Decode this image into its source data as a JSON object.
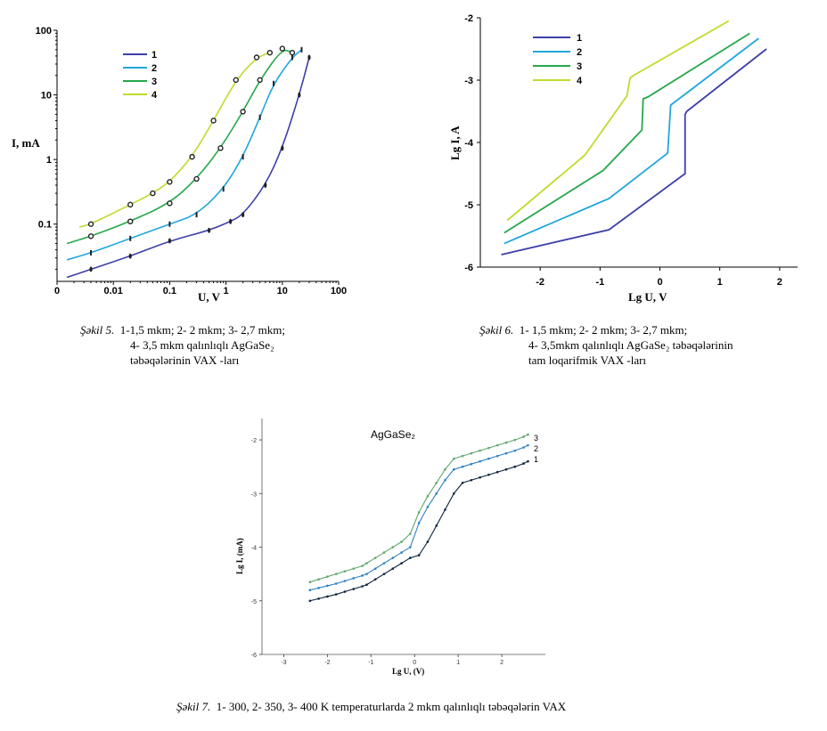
{
  "captions": {
    "fig5": {
      "label": "Şəkil 5.",
      "line1": "1-1,5 mkm; 2- 2 mkm; 3- 2,7 mkm;",
      "line2": "4- 3,5 mkm  qalınlıqlı AgGaSe₂",
      "line3": "təbəqələrinin  VAX -ları"
    },
    "fig6": {
      "label": "Şəkil 6.",
      "line1": "1- 1,5 mkm; 2- 2 mkm; 3- 2,7 mkm;",
      "line2": "4- 3,5mkm qalınlıqlı AgGaSe₂ təbəqələrinin",
      "line3": "tam loqarifmik  VAX -ları"
    },
    "fig7": {
      "label": "Şəkil 7.",
      "text": "1- 300, 2- 350, 3- 400 K temperaturlarda 2 mkm qalınlıqlı təbəqələrin VAX"
    }
  },
  "colors": {
    "s1": "#3d3fa8",
    "s2": "#21a6dc",
    "s3": "#26a84a",
    "s4": "#bedc2e",
    "f7_1": "#0a1f3a",
    "f7_2": "#2f7fc4",
    "f7_3": "#5fa86a"
  },
  "chart_data": [
    {
      "type": "line",
      "ylabel": "I, mA",
      "xlabel": "U, V",
      "xscale": "log",
      "yscale": "log",
      "xlim": [
        0.001,
        100
      ],
      "ylim": [
        0.013,
        100
      ],
      "xticks": [
        "0",
        "0.01",
        "0.1",
        "1",
        "10",
        "100"
      ],
      "yticks": [
        "0.1",
        "1",
        "10",
        "100"
      ],
      "legend": [
        "1",
        "2",
        "3",
        "4"
      ],
      "legend_position": "top-left",
      "series": [
        {
          "name": "1",
          "x": [
            0.0015,
            0.004,
            0.02,
            0.1,
            0.5,
            1.2,
            2,
            5,
            10,
            20,
            30
          ],
          "y": [
            0.015,
            0.02,
            0.032,
            0.055,
            0.08,
            0.11,
            0.14,
            0.4,
            1.5,
            10,
            38
          ]
        },
        {
          "name": "2",
          "x": [
            0.0015,
            0.004,
            0.02,
            0.1,
            0.3,
            0.9,
            2,
            4,
            7,
            15,
            22
          ],
          "y": [
            0.028,
            0.036,
            0.06,
            0.1,
            0.14,
            0.35,
            1.1,
            4.5,
            15,
            38,
            50
          ]
        },
        {
          "name": "3",
          "x": [
            0.0015,
            0.004,
            0.02,
            0.1,
            0.3,
            0.8,
            2,
            4,
            10,
            15
          ],
          "y": [
            0.05,
            0.065,
            0.11,
            0.21,
            0.5,
            1.5,
            5.5,
            17,
            52,
            45
          ]
        },
        {
          "name": "4",
          "x": [
            0.0025,
            0.004,
            0.02,
            0.05,
            0.1,
            0.25,
            0.6,
            1.5,
            3.5,
            6
          ],
          "y": [
            0.09,
            0.1,
            0.2,
            0.3,
            0.45,
            1.1,
            4,
            17,
            38,
            45
          ]
        }
      ]
    },
    {
      "type": "line",
      "ylabel": "Lg I, A",
      "xlabel": "Lg U, V",
      "xlim": [
        -3,
        2.3
      ],
      "ylim": [
        -6,
        -2
      ],
      "xticks": [
        "-2",
        "-1",
        "0",
        "1",
        "2"
      ],
      "yticks": [
        "-2",
        "-3",
        "-4",
        "-5",
        "-6"
      ],
      "legend": [
        "1",
        "2",
        "3",
        "4"
      ],
      "legend_position": "top-left",
      "series": [
        {
          "name": "1",
          "x": [
            -2.65,
            -0.85,
            0.42,
            0.42,
            0.45,
            1.78
          ],
          "y": [
            -5.8,
            -5.4,
            -4.5,
            -3.55,
            -3.5,
            -2.5
          ]
        },
        {
          "name": "2",
          "x": [
            -2.6,
            -0.85,
            0.13,
            0.18,
            0.25,
            1.65
          ],
          "y": [
            -5.62,
            -4.9,
            -4.17,
            -3.4,
            -3.35,
            -2.33
          ]
        },
        {
          "name": "3",
          "x": [
            -2.6,
            -0.95,
            -0.3,
            -0.28,
            -0.2,
            1.5
          ],
          "y": [
            -5.45,
            -4.45,
            -3.8,
            -3.3,
            -3.27,
            -2.25
          ]
        },
        {
          "name": "4",
          "x": [
            -2.55,
            -1.25,
            -0.55,
            -0.5,
            -0.45,
            1.15
          ],
          "y": [
            -5.25,
            -4.2,
            -3.25,
            -2.97,
            -2.93,
            -2.05
          ]
        }
      ]
    },
    {
      "type": "line",
      "title": "AgGaSe₂",
      "ylabel": "Lg I, (mA)",
      "xlabel": "Lg U, (V)",
      "xlim": [
        -3.5,
        3
      ],
      "ylim": [
        -6,
        -1.6
      ],
      "xticks": [
        "-3",
        "-2",
        "-1",
        "0",
        "1",
        "2"
      ],
      "yticks": [
        "-2",
        "-3",
        "-4",
        "-5",
        "-6"
      ],
      "legend": [
        "3",
        "2",
        "1"
      ],
      "legend_position": "right",
      "series": [
        {
          "name": "1",
          "x": [
            -2.4,
            -2.2,
            -2,
            -1.8,
            -1.6,
            -1.4,
            -1.2,
            -1.1,
            -0.9,
            -0.7,
            -0.5,
            -0.3,
            -0.1,
            0.1,
            0.3,
            0.5,
            0.7,
            0.9,
            1.1,
            1.3,
            1.5,
            1.7,
            1.9,
            2.1,
            2.3,
            2.5,
            2.6
          ],
          "y": [
            -5,
            -4.96,
            -4.92,
            -4.88,
            -4.83,
            -4.78,
            -4.73,
            -4.7,
            -4.6,
            -4.5,
            -4.4,
            -4.3,
            -4.2,
            -4.15,
            -3.9,
            -3.6,
            -3.3,
            -3,
            -2.8,
            -2.75,
            -2.7,
            -2.65,
            -2.6,
            -2.55,
            -2.5,
            -2.44,
            -2.4
          ]
        },
        {
          "name": "2",
          "x": [
            -2.4,
            -2.2,
            -2,
            -1.8,
            -1.6,
            -1.4,
            -1.2,
            -1.1,
            -0.9,
            -0.7,
            -0.5,
            -0.3,
            -0.1,
            0.1,
            0.3,
            0.5,
            0.7,
            0.9,
            1.1,
            1.3,
            1.5,
            1.7,
            1.9,
            2.1,
            2.3,
            2.5,
            2.6
          ],
          "y": [
            -4.8,
            -4.76,
            -4.72,
            -4.68,
            -4.63,
            -4.58,
            -4.53,
            -4.5,
            -4.4,
            -4.3,
            -4.2,
            -4.1,
            -4.0,
            -3.55,
            -3.25,
            -3,
            -2.75,
            -2.55,
            -2.5,
            -2.45,
            -2.4,
            -2.35,
            -2.3,
            -2.25,
            -2.2,
            -2.14,
            -2.1
          ]
        },
        {
          "name": "3",
          "x": [
            -2.4,
            -2.2,
            -2,
            -1.8,
            -1.6,
            -1.4,
            -1.2,
            -1.1,
            -0.9,
            -0.7,
            -0.5,
            -0.3,
            -0.1,
            0.1,
            0.3,
            0.5,
            0.7,
            0.9,
            1.1,
            1.3,
            1.5,
            1.7,
            1.9,
            2.1,
            2.3,
            2.5,
            2.6
          ],
          "y": [
            -4.65,
            -4.6,
            -4.55,
            -4.5,
            -4.45,
            -4.4,
            -4.35,
            -4.3,
            -4.2,
            -4.1,
            -4.0,
            -3.9,
            -3.75,
            -3.35,
            -3.05,
            -2.8,
            -2.55,
            -2.35,
            -2.3,
            -2.25,
            -2.2,
            -2.15,
            -2.1,
            -2.05,
            -2.0,
            -1.94,
            -1.9
          ]
        }
      ]
    }
  ]
}
